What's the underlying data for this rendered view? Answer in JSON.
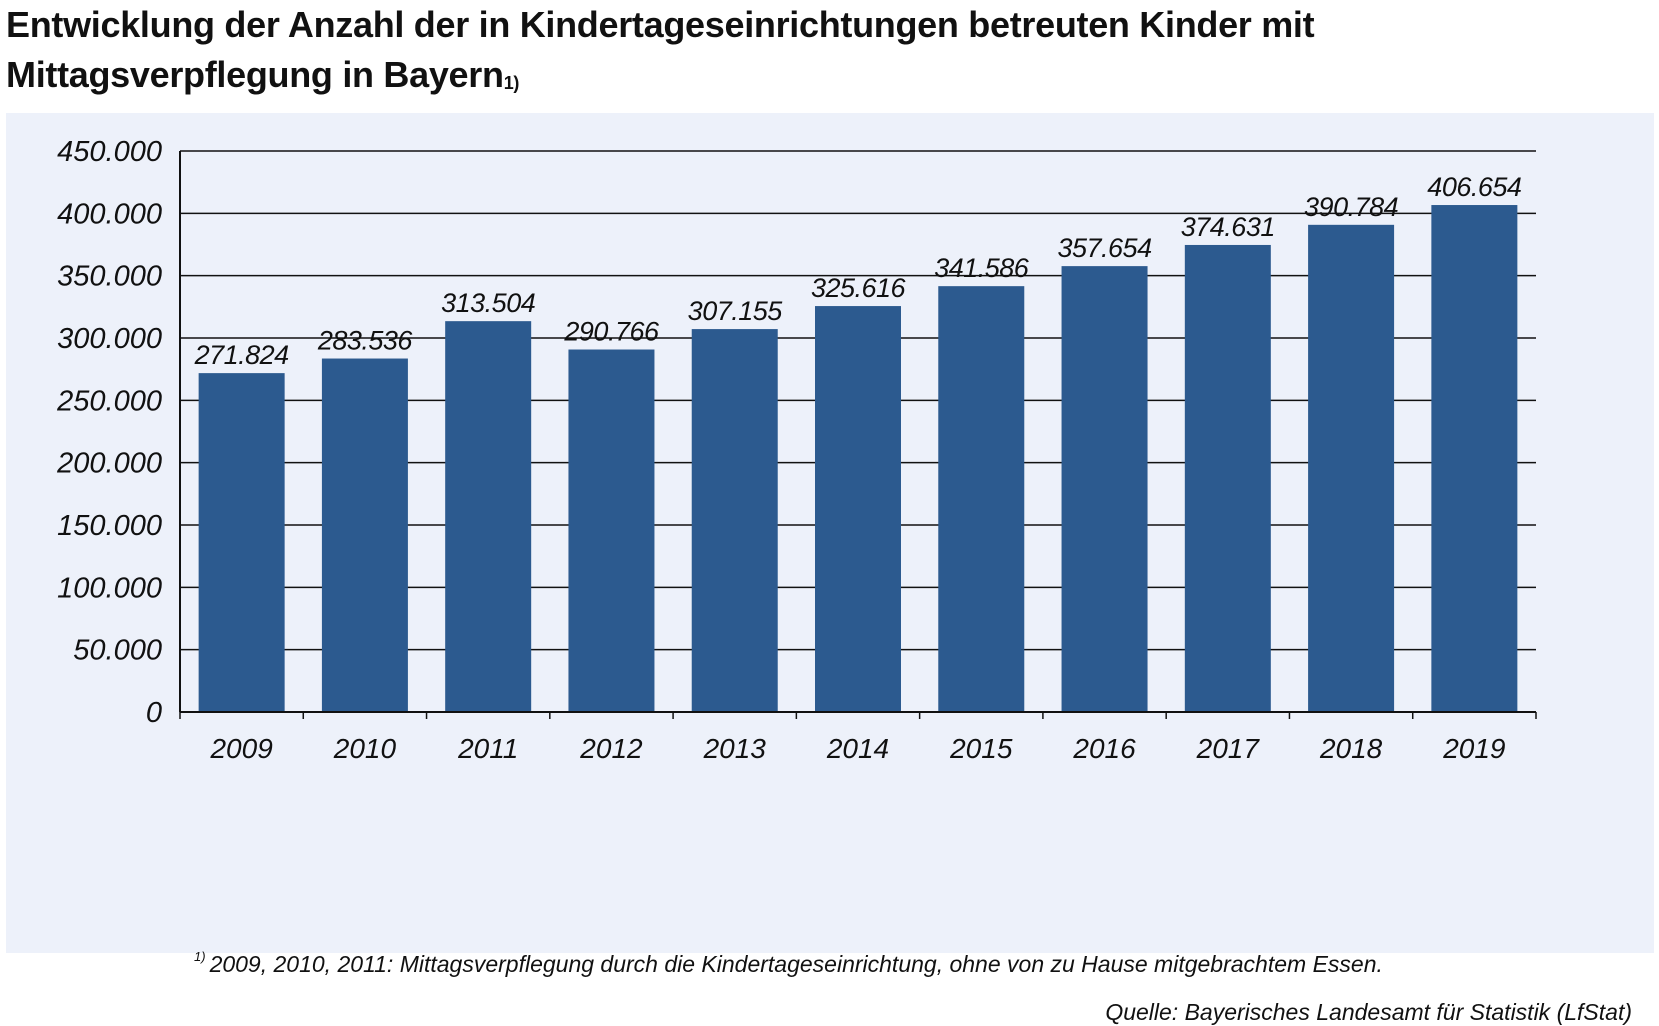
{
  "title": {
    "text": "Entwicklung der Anzahl der in Kindertageseinrichtungen betreuten Kinder mit Mittagsverpflegung in Bayern",
    "marker": "1)"
  },
  "footnote": {
    "marker": "1)",
    "text": "2009, 2010, 2011: Mittagsverpflegung durch die Kindertageseinrichtung, ohne von zu Hause mitgebrachtem Essen."
  },
  "source": "Quelle: Bayerisches Landesamt für Statistik (LfStat)",
  "colors": {
    "bar": "#2c5a8f",
    "panel": "#edf1fa",
    "grid": "#111111"
  },
  "chart_data": {
    "type": "bar",
    "title": "Entwicklung der Anzahl der in Kindertageseinrichtungen betreuten Kinder mit Mittagsverpflegung in Bayern",
    "xlabel": "",
    "ylabel": "",
    "ylim": [
      0,
      450000
    ],
    "yticks": [
      0,
      50000,
      100000,
      150000,
      200000,
      250000,
      300000,
      350000,
      400000,
      450000
    ],
    "ytick_labels": [
      "0",
      "50.000",
      "100.000",
      "150.000",
      "200.000",
      "250.000",
      "300.000",
      "350.000",
      "400.000",
      "450.000"
    ],
    "grid": true,
    "categories": [
      "2009",
      "2010",
      "2011",
      "2012",
      "2013",
      "2014",
      "2015",
      "2016",
      "2017",
      "2018",
      "2019"
    ],
    "values": [
      271824,
      283536,
      313504,
      290766,
      307155,
      325616,
      341586,
      357654,
      374631,
      390784,
      406654
    ],
    "value_labels": [
      "271.824",
      "283.536",
      "313.504",
      "290.766",
      "307.155",
      "325.616",
      "341.586",
      "357.654",
      "374.631",
      "390.784",
      "406.654"
    ]
  }
}
